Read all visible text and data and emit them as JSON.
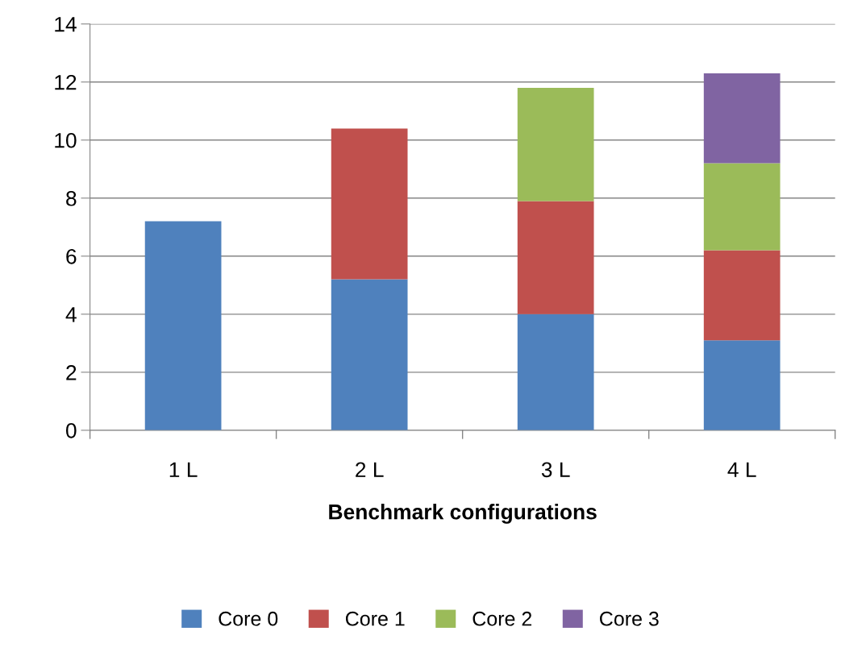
{
  "chart_data": {
    "type": "bar",
    "stacked": true,
    "xlabel": "Benchmark configurations",
    "categories": [
      "1 L",
      "2 L",
      "3 L",
      "4 L"
    ],
    "series": [
      {
        "name": "Core 0",
        "color": "#4f81bd",
        "values": [
          7.2,
          5.2,
          4.0,
          3.1
        ]
      },
      {
        "name": "Core 1",
        "color": "#c0504d",
        "values": [
          null,
          5.2,
          3.9,
          3.1
        ]
      },
      {
        "name": "Core 2",
        "color": "#9bbb59",
        "values": [
          null,
          null,
          3.9,
          3.0
        ]
      },
      {
        "name": "Core 3",
        "color": "#8064a2",
        "values": [
          null,
          null,
          null,
          3.1
        ]
      }
    ],
    "ylim": [
      0,
      14
    ],
    "yticks": [
      0,
      2,
      4,
      6,
      8,
      10,
      12,
      14
    ],
    "grid": "y",
    "legend": "bottom"
  }
}
